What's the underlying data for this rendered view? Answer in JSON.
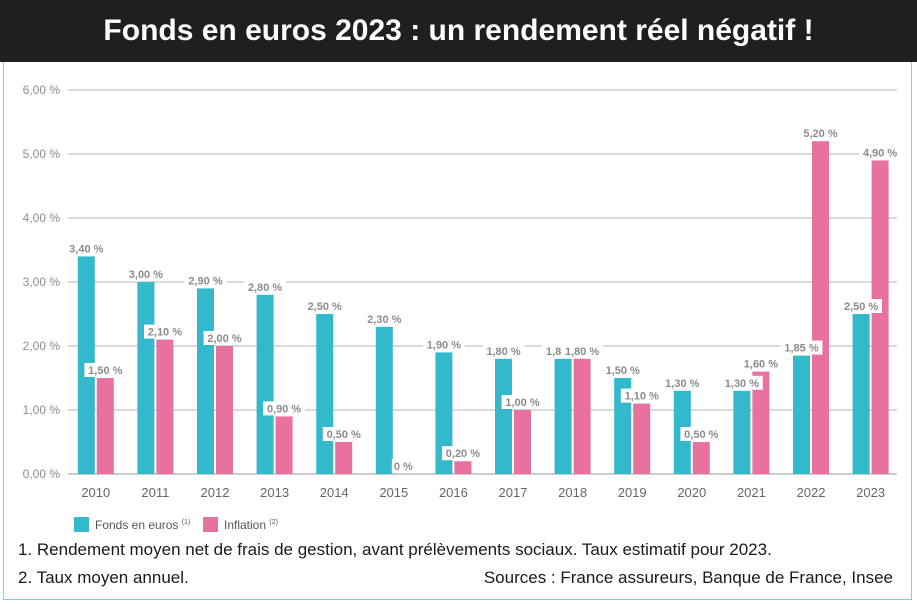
{
  "header": {
    "title": "Fonds en euros 2023 : un rendement réel négatif !"
  },
  "colors": {
    "fonds": "#33b8cc",
    "inflation": "#e8719f",
    "header_bg": "#1f1f1f",
    "grid": "#b5b5b5",
    "label": "#8c8c8c"
  },
  "chart_data": {
    "type": "bar",
    "categories": [
      "2010",
      "2011",
      "2012",
      "2013",
      "2014",
      "2015",
      "2016",
      "2017",
      "2018",
      "2019",
      "2020",
      "2021",
      "2022",
      "2023"
    ],
    "series": [
      {
        "name": "Fonds en euros",
        "sup": "(1)",
        "values": [
          3.4,
          3.0,
          2.9,
          2.8,
          2.5,
          2.3,
          1.9,
          1.8,
          1.8,
          1.5,
          1.3,
          1.3,
          1.85,
          2.5
        ],
        "labels": [
          "3,40 %",
          "3,00 %",
          "2,90 %",
          "2,80 %",
          "2,50 %",
          "2,30 %",
          "1,90 %",
          "1,80 %",
          "1,80 %",
          "1,50 %",
          "1,30 %",
          "1,30 %",
          "1,85 %",
          "2,50 %"
        ]
      },
      {
        "name": "Inflation",
        "sup": "(2)",
        "values": [
          1.5,
          2.1,
          2.0,
          0.9,
          0.5,
          0.0,
          0.2,
          1.0,
          1.8,
          1.1,
          0.5,
          1.6,
          5.2,
          4.9
        ],
        "labels": [
          "1,50 %",
          "2,10 %",
          "2,00 %",
          "0,90 %",
          "0,50 %",
          "0 %",
          "0,20 %",
          "1,00 %",
          "1,80 %",
          "1,10 %",
          "0,50 %",
          "1,60 %",
          "5,20 %",
          "4,90 %"
        ]
      }
    ],
    "yticks": [
      0,
      1,
      2,
      3,
      4,
      5,
      6
    ],
    "ytick_labels": [
      "0,00 %",
      "1,00 %",
      "2,00 %",
      "3,00 %",
      "4,00 %",
      "5,00 %",
      "6,00 %"
    ],
    "ylim": [
      0,
      6
    ],
    "grid": true,
    "legend_position": "bottom-left"
  },
  "notes": {
    "note1": "1. Rendement moyen net de frais de gestion, avant prélèvements sociaux. Taux estimatif pour 2023.",
    "note2": "2. Taux moyen annuel.",
    "sources": "Sources : France assureurs, Banque de France, Insee"
  }
}
